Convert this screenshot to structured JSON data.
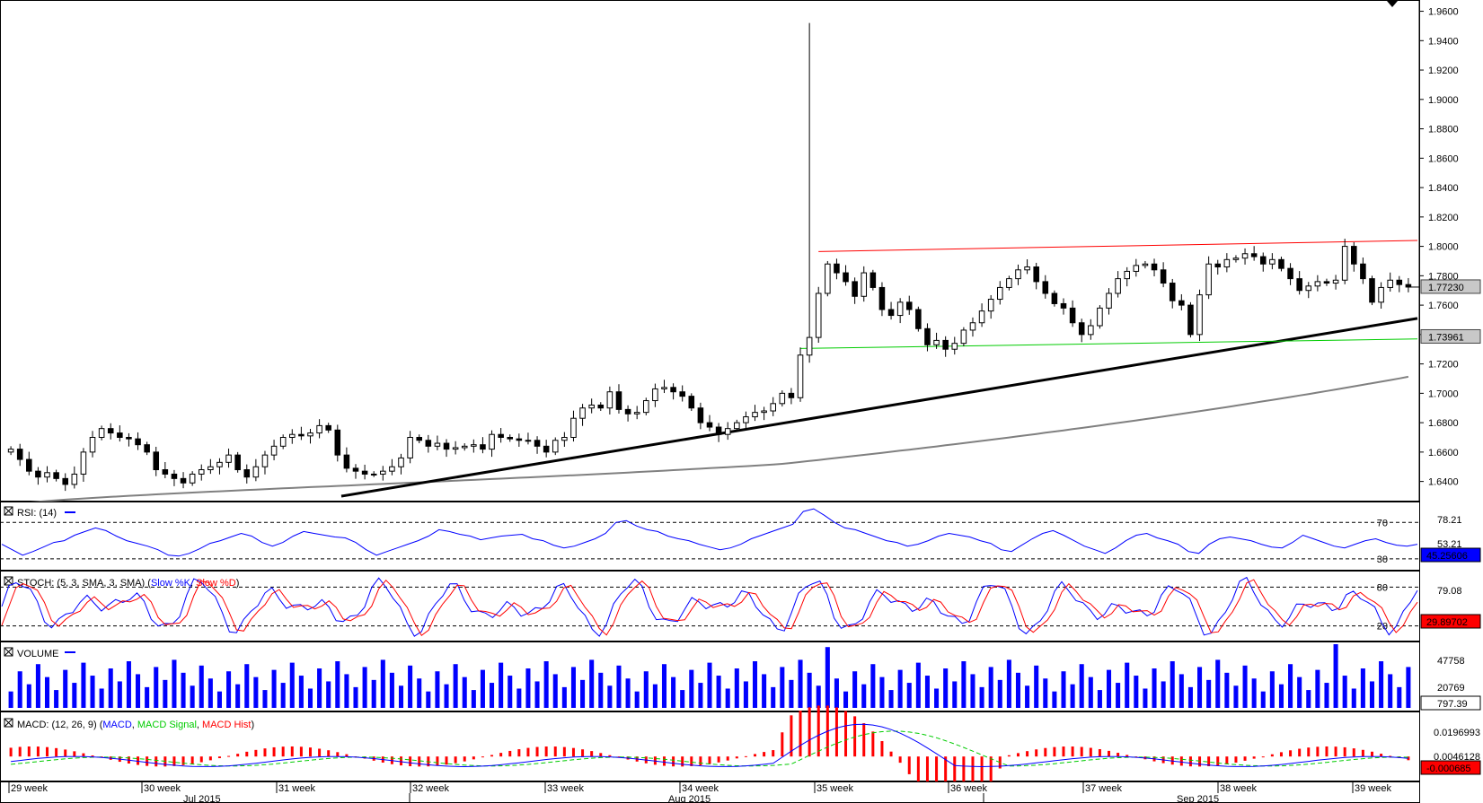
{
  "chart_data": {
    "type": "candlestick",
    "main": {
      "y_ticks": [
        1.96,
        1.94,
        1.92,
        1.9,
        1.88,
        1.86,
        1.84,
        1.82,
        1.8,
        1.78,
        1.76,
        1.74,
        1.72,
        1.7,
        1.68,
        1.66,
        1.64
      ],
      "y_tick_labels": [
        "1.9600",
        "1.9400",
        "1.9200",
        "1.9000",
        "1.8800",
        "1.8600",
        "1.8400",
        "1.8200",
        "1.8000",
        "1.7800",
        "1.7600",
        "1.7400",
        "1.7200",
        "1.7000",
        "1.6800",
        "1.6600",
        "1.6400"
      ],
      "ylim": [
        1.63,
        1.964
      ],
      "last_price": 1.7723,
      "last_price_label": "1.77230",
      "sma_value": 1.73961,
      "sma_label": "1.73961",
      "spike_high": 1.952,
      "closes": [
        1.662,
        1.655,
        1.647,
        1.643,
        1.646,
        1.642,
        1.638,
        1.645,
        1.66,
        1.67,
        1.676,
        1.673,
        1.67,
        1.669,
        1.665,
        1.66,
        1.648,
        1.645,
        1.642,
        1.639,
        1.645,
        1.648,
        1.65,
        1.653,
        1.658,
        1.648,
        1.643,
        1.65,
        1.658,
        1.664,
        1.67,
        1.672,
        1.671,
        1.673,
        1.678,
        1.675,
        1.658,
        1.649,
        1.647,
        1.645,
        1.645,
        1.647,
        1.65,
        1.656,
        1.67,
        1.668,
        1.664,
        1.666,
        1.662,
        1.663,
        1.664,
        1.665,
        1.662,
        1.672,
        1.67,
        1.669,
        1.668,
        1.668,
        1.664,
        1.66,
        1.668,
        1.67,
        1.683,
        1.69,
        1.692,
        1.69,
        1.701,
        1.689,
        1.686,
        1.687,
        1.695,
        1.703,
        1.704,
        1.701,
        1.698,
        1.69,
        1.68,
        1.677,
        1.672,
        1.676,
        1.68,
        1.684,
        1.687,
        1.688,
        1.693,
        1.7,
        1.697,
        1.726,
        1.738,
        1.768,
        1.788,
        1.782,
        1.776,
        1.766,
        1.782,
        1.772,
        1.757,
        1.753,
        1.762,
        1.757,
        1.744,
        1.733,
        1.736,
        1.73,
        1.734,
        1.743,
        1.748,
        1.756,
        1.764,
        1.772,
        1.778,
        1.784,
        1.786,
        1.776,
        1.768,
        1.761,
        1.758,
        1.748,
        1.74,
        1.746,
        1.758,
        1.768,
        1.778,
        1.783,
        1.787,
        1.788,
        1.784,
        1.775,
        1.763,
        1.76,
        1.74,
        1.767,
        1.788,
        1.786,
        1.791,
        1.792,
        1.795,
        1.793,
        1.788,
        1.791,
        1.785,
        1.778,
        1.77,
        1.773,
        1.776,
        1.775,
        1.777,
        1.8,
        1.788,
        1.778,
        1.762,
        1.772,
        1.777,
        1.774,
        1.7723
      ]
    },
    "rsi": {
      "label": "RSI: (14)",
      "levels": [
        70,
        30
      ],
      "level_labels": [
        "70",
        "30"
      ],
      "top_label": "78.21",
      "mid_label": "53.21",
      "last_label": "45.25606",
      "ylim": [
        20,
        90
      ],
      "values": [
        46,
        40,
        34,
        38,
        43,
        48,
        50,
        56,
        60,
        64,
        61,
        55,
        50,
        47,
        44,
        40,
        34,
        33,
        36,
        41,
        47,
        50,
        54,
        58,
        55,
        48,
        44,
        48,
        55,
        60,
        58,
        56,
        54,
        53,
        48,
        40,
        34,
        38,
        42,
        46,
        50,
        55,
        62,
        60,
        57,
        55,
        51,
        53,
        55,
        56,
        57,
        52,
        50,
        45,
        42,
        44,
        48,
        52,
        58,
        70,
        72,
        66,
        62,
        60,
        55,
        52,
        50,
        46,
        43,
        40,
        42,
        46,
        52,
        56,
        60,
        64,
        68,
        82,
        85,
        78,
        70,
        64,
        62,
        58,
        54,
        50,
        48,
        44,
        46,
        50,
        55,
        58,
        56,
        54,
        50,
        47,
        40,
        38,
        45,
        52,
        58,
        61,
        56,
        50,
        44,
        40,
        36,
        42,
        50,
        56,
        58,
        53,
        50,
        46,
        38,
        36,
        46,
        52,
        54,
        52,
        50,
        46,
        43,
        42,
        48,
        56,
        52,
        48,
        44,
        42,
        46,
        50,
        52,
        48,
        45,
        44,
        46
      ]
    },
    "stoch": {
      "label": "STOCH: (5, 3, SMA, 3, SMA)",
      "legend_k": "Slow %K",
      "legend_d": "Slow %D",
      "levels": [
        80,
        20
      ],
      "level_labels": [
        "80",
        "20"
      ],
      "top_label": "79.08",
      "last_label": "29.89702",
      "ylim": [
        0,
        100
      ]
    },
    "volume": {
      "label": "VOLUME",
      "top_label": "47758",
      "mid_label": "20769",
      "last_label": "797.39",
      "ylim": [
        0,
        62000
      ]
    },
    "macd": {
      "label": "MACD: (12, 26, 9)",
      "legend_macd": "MACD",
      "legend_signal": "MACD Signal",
      "legend_hist": "MACD Hist",
      "top_label": "0.0196993",
      "mid_label": "0.0046128",
      "last_label": "-0.000685",
      "ylim": [
        -0.008,
        0.023
      ]
    },
    "x_axis": {
      "week_labels": [
        "29 week",
        "30 week",
        "31 week",
        "32 week",
        "33 week",
        "34 week",
        "35 week",
        "36 week",
        "37 week",
        "38 week",
        "39 week"
      ],
      "month_labels": [
        "Jul 2015",
        "Aug 2015",
        "Sep 2015"
      ]
    }
  },
  "colors": {
    "candle_up": "#ffffff",
    "candle_down": "#000000",
    "resistance": "#ff0000",
    "support": "#00cc00",
    "trendline": "#000000",
    "sma": "#808080",
    "rsi": "#0000ff",
    "stoch_k": "#0000ff",
    "stoch_d": "#ff0000",
    "volume": "#0000ff",
    "macd": "#0000ff",
    "macd_signal": "#00cc00",
    "macd_hist": "#ff0000",
    "value_box_red": "#ff0000",
    "value_box_blue": "#0000ff"
  }
}
